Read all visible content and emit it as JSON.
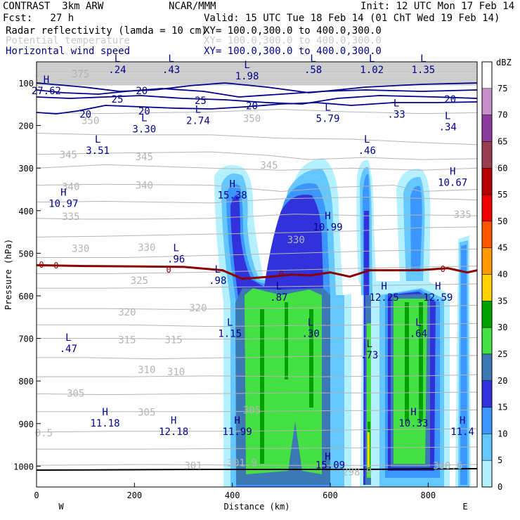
{
  "header": {
    "model": "CONTRAST  3km ARW",
    "org": "NCAR/MMM",
    "init": "Init: 12 UTC Mon 17 Feb 14",
    "fcst": "Fcst:   27 h",
    "valid": "Valid: 15 UTC Tue 18 Feb 14 (01 ChT Wed 19 Feb 14)",
    "fields": [
      {
        "name": "Radar reflectivity (lamda = 10 cm)",
        "xy": "XY= 100.0,300.0 to 400.0,300.0",
        "color": "#000000"
      },
      {
        "name": "Potential temperature",
        "xy": "XY= 100.0,300.0 to 400.0,300.0",
        "color": "#c8c8c8"
      },
      {
        "name": "Horizontal wind speed",
        "xy": "XY= 100.0,300.0 to 400.0,300.0",
        "color": "#00008b"
      }
    ]
  },
  "chart_data": {
    "type": "cross-section",
    "xlabel": "Distance (km)",
    "ylabel": "Pressure (hPa)",
    "xlim": [
      0,
      900
    ],
    "ylim": [
      1000,
      50
    ],
    "x_ticks": [
      "0",
      "200",
      "400",
      "600",
      "800"
    ],
    "x_tick_values": [
      0,
      200,
      400,
      600,
      800
    ],
    "y_ticks": [
      "100",
      "200",
      "300",
      "400",
      "500",
      "600",
      "700",
      "800",
      "900",
      "1000"
    ],
    "y_tick_values": [
      100,
      200,
      300,
      400,
      500,
      600,
      700,
      800,
      900,
      1000
    ],
    "endpoints": {
      "left": "W",
      "right": "E"
    },
    "colorbar": {
      "unit": "dBZ",
      "levels": [
        "75",
        "70",
        "65",
        "60",
        "55",
        "50",
        "45",
        "40",
        "35",
        "30",
        "25",
        "20",
        "15",
        "10",
        "5",
        "0"
      ],
      "level_values": [
        75,
        70,
        65,
        60,
        55,
        50,
        45,
        40,
        35,
        30,
        25,
        20,
        15,
        10,
        5,
        0
      ],
      "colors": [
        "#ffffff",
        "#c890c8",
        "#8c3c9c",
        "#9c3c50",
        "#b40000",
        "#ee0000",
        "#ff5500",
        "#ff9900",
        "#ffd200",
        "#00a000",
        "#44e044",
        "#3c78b4",
        "#3232dc",
        "#3c96ff",
        "#64c8ff",
        "#b4f0ff"
      ]
    },
    "reflectivity_colors": {
      "c5": "#b4f0ff",
      "c10": "#64c8ff",
      "c15": "#3c96ff",
      "c20": "#3232dc",
      "c25": "#3c78b4",
      "c30": "#44e044",
      "c35": "#00a000",
      "c40": "#ffd200"
    },
    "zero_line_color": "#8b0000",
    "zero_line_label": "0",
    "freezing_level": [
      [
        0,
        528
      ],
      [
        100,
        530
      ],
      [
        200,
        531
      ],
      [
        300,
        532
      ],
      [
        380,
        540
      ],
      [
        420,
        560
      ],
      [
        480,
        555
      ],
      [
        520,
        550
      ],
      [
        560,
        552
      ],
      [
        600,
        545
      ],
      [
        640,
        555
      ],
      [
        680,
        540
      ],
      [
        720,
        540
      ],
      [
        780,
        540
      ],
      [
        840,
        535
      ],
      [
        880,
        545
      ],
      [
        900,
        540
      ]
    ],
    "theta_labels": [
      {
        "text": "375",
        "x": 90,
        "p": 80
      },
      {
        "text": "350",
        "x": 110,
        "p": 190
      },
      {
        "text": "345",
        "x": 65,
        "p": 270
      },
      {
        "text": "345",
        "x": 220,
        "p": 275
      },
      {
        "text": "340",
        "x": 70,
        "p": 345
      },
      {
        "text": "340",
        "x": 220,
        "p": 342
      },
      {
        "text": "335",
        "x": 70,
        "p": 415
      },
      {
        "text": "335",
        "x": 870,
        "p": 410
      },
      {
        "text": "330",
        "x": 90,
        "p": 490
      },
      {
        "text": "330",
        "x": 225,
        "p": 488
      },
      {
        "text": "330",
        "x": 530,
        "p": 470
      },
      {
        "text": "325",
        "x": 210,
        "p": 565
      },
      {
        "text": "320",
        "x": 185,
        "p": 640
      },
      {
        "text": "320",
        "x": 330,
        "p": 630
      },
      {
        "text": "315",
        "x": 185,
        "p": 705
      },
      {
        "text": "315",
        "x": 280,
        "p": 705
      },
      {
        "text": "310",
        "x": 225,
        "p": 775
      },
      {
        "text": "310",
        "x": 285,
        "p": 780
      },
      {
        "text": "305",
        "x": 80,
        "p": 830
      },
      {
        "text": "305",
        "x": 225,
        "p": 875
      },
      {
        "text": "305",
        "x": 440,
        "p": 870
      },
      {
        "text": "301",
        "x": 320,
        "p": 1000
      },
      {
        "text": "300.6",
        "x": 840,
        "p": 1000
      },
      {
        "text": "350",
        "x": 440,
        "p": 185
      },
      {
        "text": "345",
        "x": 475,
        "p": 295
      },
      {
        "text": "298.9",
        "x": 655,
        "p": 1015
      }
    ],
    "wind_labels": [
      {
        "text": "20",
        "x": 215,
        "p": 120
      },
      {
        "text": "25",
        "x": 165,
        "p": 140
      },
      {
        "text": "20",
        "x": 100,
        "p": 175
      },
      {
        "text": "20",
        "x": 220,
        "p": 168
      },
      {
        "text": "25",
        "x": 335,
        "p": 143
      },
      {
        "text": "20",
        "x": 440,
        "p": 155
      },
      {
        "text": "20",
        "x": 845,
        "p": 140
      }
    ],
    "extrema": [
      {
        "type": "L",
        "value": ".24",
        "x": 165,
        "p": 70
      },
      {
        "type": "L",
        "value": ".43",
        "x": 275,
        "p": 70
      },
      {
        "type": "L",
        "value": "1.98",
        "x": 430,
        "p": 85
      },
      {
        "type": "L",
        "value": ".58",
        "x": 565,
        "p": 70
      },
      {
        "type": "L",
        "value": "1.02",
        "x": 685,
        "p": 70
      },
      {
        "type": "L",
        "value": "1.35",
        "x": 790,
        "p": 70
      },
      {
        "type": "H",
        "value": "27.62",
        "x": 20,
        "p": 120
      },
      {
        "type": "L",
        "value": "2.74",
        "x": 330,
        "p": 190
      },
      {
        "type": "L",
        "value": "3.30",
        "x": 220,
        "p": 210
      },
      {
        "type": "L",
        "value": "5.79",
        "x": 595,
        "p": 185
      },
      {
        "type": "L",
        "value": ".33",
        "x": 735,
        "p": 175
      },
      {
        "type": "L",
        "value": ".34",
        "x": 840,
        "p": 205
      },
      {
        "type": "L",
        "value": "3.51",
        "x": 125,
        "p": 260
      },
      {
        "type": "L",
        "value": ".46",
        "x": 675,
        "p": 260
      },
      {
        "type": "H",
        "value": "10.67",
        "x": 850,
        "p": 335
      },
      {
        "type": "H",
        "value": "15.38",
        "x": 400,
        "p": 365
      },
      {
        "type": "H",
        "value": "10.97",
        "x": 55,
        "p": 385
      },
      {
        "type": "H",
        "value": "10.99",
        "x": 595,
        "p": 440
      },
      {
        "type": "L",
        "value": ".96",
        "x": 285,
        "p": 515
      },
      {
        "type": "L",
        "value": ".98",
        "x": 370,
        "p": 565
      },
      {
        "type": "L",
        "value": ".87",
        "x": 495,
        "p": 605
      },
      {
        "type": "H",
        "value": "12.25",
        "x": 710,
        "p": 605
      },
      {
        "type": "H",
        "value": "12.59",
        "x": 820,
        "p": 605
      },
      {
        "type": "L",
        "value": "1.15",
        "x": 395,
        "p": 690
      },
      {
        "type": "L",
        "value": ".30",
        "x": 560,
        "p": 690
      },
      {
        "type": "L",
        "value": ".64",
        "x": 780,
        "p": 690
      },
      {
        "type": "L",
        "value": ".47",
        "x": 65,
        "p": 725
      },
      {
        "type": "L",
        "value": ".73",
        "x": 680,
        "p": 740
      },
      {
        "type": "H",
        "value": "11.18",
        "x": 140,
        "p": 900
      },
      {
        "type": "H",
        "value": "12.18",
        "x": 280,
        "p": 920
      },
      {
        "type": "H",
        "value": "11.99",
        "x": 410,
        "p": 920
      },
      {
        "type": "H",
        "value": "10.33",
        "x": 770,
        "p": 900
      },
      {
        "type": "H",
        "value": "11.4",
        "x": 870,
        "p": 920
      }
    ],
    "extra_labels": [
      {
        "text": "0.5",
        "x": 15,
        "p": 930
      },
      {
        "text": "301.9",
        "x": 420,
        "p": 1000
      },
      {
        "text": "H",
        "x": 595,
        "p": 985
      },
      {
        "text": "15.09",
        "x": 600,
        "p": 1005
      }
    ]
  }
}
